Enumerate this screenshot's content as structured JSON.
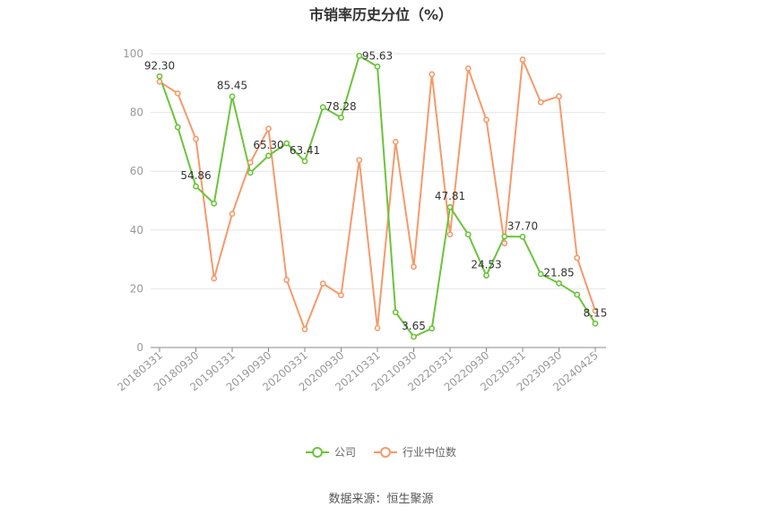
{
  "title": "市销率历史分位（%）",
  "source": "数据来源：恒生聚源",
  "colors": {
    "company": "#6bc43b",
    "industry": "#f59a6b",
    "grid": "#e6e6e6",
    "axis": "#999999"
  },
  "chart_data": {
    "type": "line",
    "title": "市销率历史分位（%）",
    "ylim": [
      0,
      100
    ],
    "yticks": [
      0,
      20,
      40,
      60,
      80,
      100
    ],
    "grid": true,
    "legend_position": "bottom",
    "x": [
      "20180331",
      "20180630",
      "20180930",
      "20181231",
      "20190331",
      "20190630",
      "20190930",
      "20191231",
      "20200331",
      "20200630",
      "20200930",
      "20201231",
      "20210331",
      "20210630",
      "20210930",
      "20211231",
      "20220331",
      "20220630",
      "20220930",
      "20221231",
      "20230331",
      "20230630",
      "20230930",
      "20231231",
      "20240425"
    ],
    "xtick_labels": [
      "20180331",
      "20180930",
      "20190331",
      "20190930",
      "20200331",
      "20200930",
      "20210331",
      "20210930",
      "20220331",
      "20220930",
      "20230331",
      "20230930",
      "20240425"
    ],
    "series": [
      {
        "name": "公司",
        "values": [
          92.3,
          75.0,
          54.86,
          49.0,
          85.45,
          59.5,
          65.3,
          69.5,
          63.41,
          81.8,
          78.28,
          99.3,
          95.63,
          12.0,
          3.65,
          6.5,
          47.81,
          38.5,
          24.53,
          37.8,
          37.7,
          25.0,
          21.85,
          18.0,
          8.15
        ],
        "data_labels": {
          "0": "92.30",
          "2": "54.86",
          "4": "85.45",
          "6": "65.30",
          "8": "63.41",
          "10": "78.28",
          "12": "95.63",
          "14": "3.65",
          "16": "47.81",
          "18": "24.53",
          "20": "37.70",
          "22": "21.85",
          "24": "8.15"
        }
      },
      {
        "name": "行业中位数",
        "values": [
          90.5,
          86.5,
          71.0,
          23.5,
          45.5,
          63.0,
          74.5,
          23.0,
          6.2,
          21.8,
          17.8,
          63.8,
          6.6,
          70.0,
          27.5,
          93.0,
          38.5,
          95.0,
          77.5,
          35.5,
          98.0,
          83.5,
          85.5,
          30.5,
          12.5
        ]
      }
    ]
  }
}
